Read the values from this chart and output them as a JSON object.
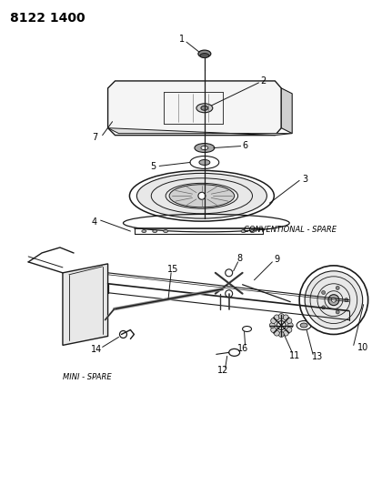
{
  "title_code": "8122 1400",
  "bg_color": "#ffffff",
  "line_color": "#1a1a1a",
  "label1": "CONVENTIONAL - SPARE",
  "label2": "MINI - SPARE",
  "fig_width": 4.1,
  "fig_height": 5.33,
  "dpi": 100
}
